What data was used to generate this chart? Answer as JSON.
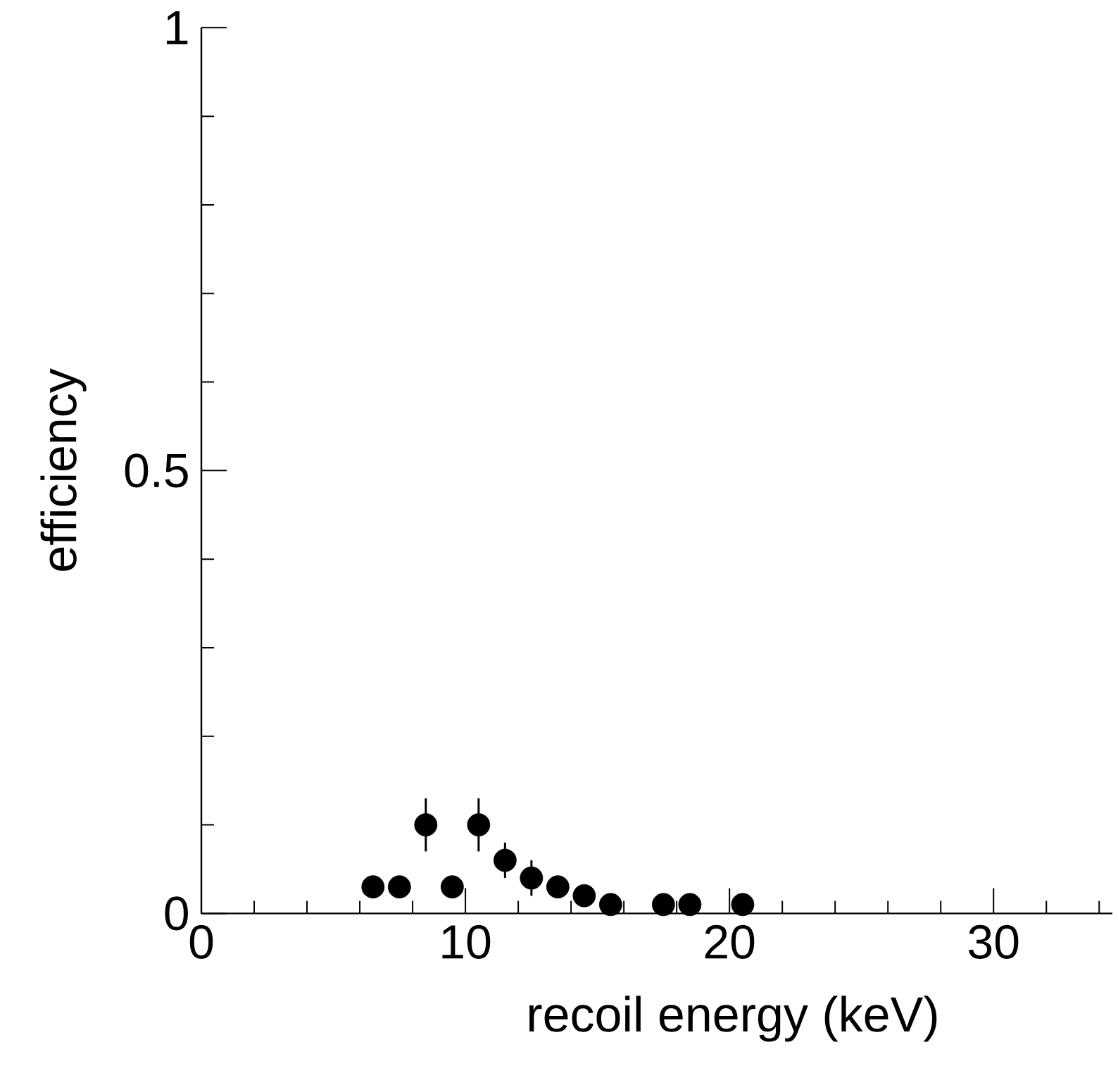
{
  "chart_data": {
    "type": "scatter",
    "xlabel": "recoil energy (keV)",
    "ylabel": "efficiency",
    "x": [
      6.5,
      7.5,
      8.5,
      9.5,
      10.5,
      11.5,
      12.5,
      13.5,
      14.5,
      15.5,
      17.5,
      18.5,
      20.5
    ],
    "values": [
      0.03,
      0.03,
      0.1,
      0.03,
      0.1,
      0.06,
      0.04,
      0.03,
      0.02,
      0.01,
      0.01,
      0.01,
      0.01
    ],
    "errors": [
      null,
      null,
      0.03,
      null,
      0.03,
      0.02,
      0.02,
      null,
      null,
      null,
      null,
      null,
      null
    ],
    "color": "#000000",
    "marker": "circle",
    "grid": false,
    "xlim": [
      0,
      34.5
    ],
    "ylim": [
      0,
      1
    ],
    "xticks": [
      0,
      {
        "value": 2,
        "label": null
      },
      {
        "value": 4,
        "label": null
      },
      {
        "value": 6,
        "label": null
      },
      {
        "value": 8,
        "label": null
      },
      10,
      {
        "value": 12,
        "label": null
      },
      {
        "value": 14,
        "label": null
      },
      {
        "value": 16,
        "label": null
      },
      {
        "value": 18,
        "label": null
      },
      20,
      {
        "value": 22,
        "label": null
      },
      {
        "value": 24,
        "label": null
      },
      {
        "value": 26,
        "label": null
      },
      {
        "value": 28,
        "label": null
      },
      30,
      {
        "value": 32,
        "label": null
      },
      {
        "value": 34,
        "label": null
      }
    ],
    "yticks": [
      0,
      {
        "value": 0.1,
        "label": null
      },
      {
        "value": 0.2,
        "label": null
      },
      {
        "value": 0.3,
        "label": null
      },
      {
        "value": 0.4,
        "label": null
      },
      0.5,
      {
        "value": 0.6,
        "label": null
      },
      {
        "value": 0.7,
        "label": null
      },
      {
        "value": 0.8,
        "label": null
      },
      {
        "value": 0.9,
        "label": null
      },
      1
    ]
  }
}
